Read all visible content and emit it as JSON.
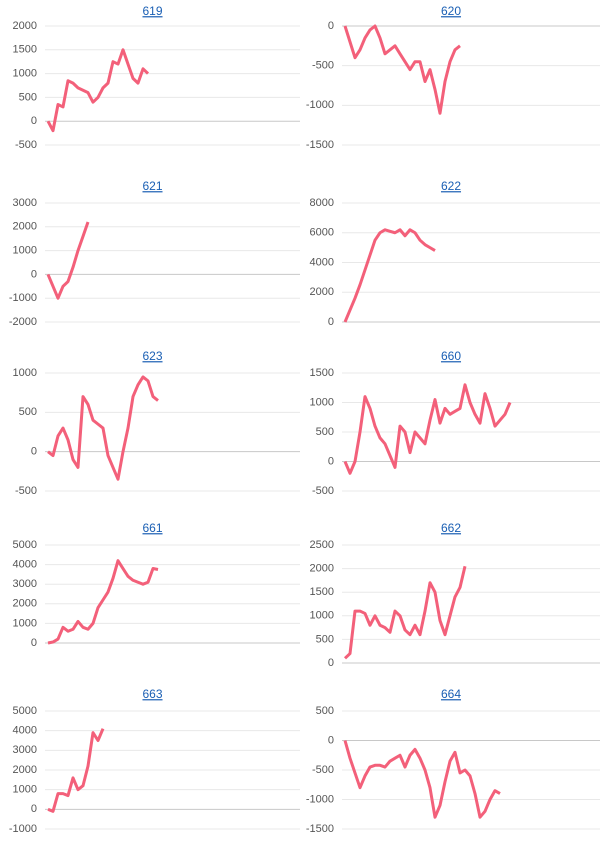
{
  "chart_data": [
    {
      "type": "line",
      "title": "619",
      "color": "#f3607a",
      "ylim": [
        -500,
        2000
      ],
      "yticks": [
        -500,
        0,
        500,
        1000,
        1500,
        2000
      ],
      "values": [
        0,
        -200,
        350,
        300,
        850,
        800,
        700,
        650,
        600,
        400,
        500,
        700,
        800,
        1250,
        1200,
        1500,
        1200,
        900,
        800,
        1100,
        1000
      ]
    },
    {
      "type": "line",
      "title": "620",
      "color": "#f3607a",
      "ylim": [
        -1500,
        0
      ],
      "yticks": [
        -1500,
        -1000,
        -500,
        0
      ],
      "values": [
        0,
        -200,
        -400,
        -300,
        -150,
        -50,
        0,
        -150,
        -350,
        -300,
        -250,
        -350,
        -450,
        -550,
        -450,
        -450,
        -700,
        -550,
        -800,
        -1100,
        -700,
        -450,
        -300,
        -250
      ]
    },
    {
      "type": "line",
      "title": "621",
      "color": "#f3607a",
      "ylim": [
        -2000,
        3000
      ],
      "yticks": [
        -2000,
        -1000,
        0,
        1000,
        2000,
        3000
      ],
      "values": [
        0,
        -500,
        -1000,
        -500,
        -300,
        300,
        1000,
        1600,
        2200
      ]
    },
    {
      "type": "line",
      "title": "622",
      "color": "#f3607a",
      "ylim": [
        0,
        8000
      ],
      "yticks": [
        0,
        2000,
        4000,
        6000,
        8000
      ],
      "values": [
        0,
        800,
        1600,
        2500,
        3500,
        4500,
        5500,
        6000,
        6200,
        6100,
        6000,
        6200,
        5800,
        6200,
        6000,
        5500,
        5200,
        5000,
        4800
      ]
    },
    {
      "type": "line",
      "title": "623",
      "color": "#f3607a",
      "ylim": [
        -500,
        1000
      ],
      "yticks": [
        -500,
        0,
        500,
        1000
      ],
      "values": [
        0,
        -50,
        200,
        300,
        150,
        -100,
        -200,
        700,
        600,
        400,
        350,
        300,
        -50,
        -200,
        -350,
        0,
        300,
        700,
        850,
        950,
        900,
        700,
        650
      ]
    },
    {
      "type": "line",
      "title": "660",
      "color": "#f3607a",
      "ylim": [
        -500,
        1500
      ],
      "yticks": [
        -500,
        0,
        500,
        1000,
        1500
      ],
      "values": [
        0,
        -200,
        0,
        500,
        1100,
        900,
        600,
        400,
        300,
        100,
        -100,
        600,
        500,
        150,
        500,
        400,
        300,
        700,
        1050,
        650,
        900,
        800,
        850,
        900,
        1300,
        1000,
        800,
        650,
        1150,
        900,
        600,
        700,
        800,
        1000
      ]
    },
    {
      "type": "line",
      "title": "661",
      "color": "#f3607a",
      "ylim": [
        0,
        5000
      ],
      "yticks": [
        0,
        1000,
        2000,
        3000,
        4000,
        5000
      ],
      "values": [
        0,
        50,
        200,
        800,
        600,
        700,
        1100,
        800,
        700,
        1000,
        1800,
        2200,
        2600,
        3300,
        4200,
        3800,
        3400,
        3200,
        3100,
        3000,
        3100,
        3800,
        3750
      ]
    },
    {
      "type": "line",
      "title": "662",
      "color": "#f3607a",
      "ylim": [
        0,
        2500
      ],
      "yticks": [
        0,
        500,
        1000,
        1500,
        2000,
        2500
      ],
      "values": [
        100,
        200,
        1100,
        1100,
        1050,
        800,
        1000,
        800,
        750,
        650,
        1100,
        1000,
        700,
        600,
        800,
        600,
        1100,
        1700,
        1500,
        900,
        600,
        1000,
        1400,
        1600,
        2050
      ]
    },
    {
      "type": "line",
      "title": "663",
      "color": "#f3607a",
      "ylim": [
        -1000,
        5000
      ],
      "yticks": [
        -1000,
        0,
        1000,
        2000,
        3000,
        4000,
        5000
      ],
      "values": [
        0,
        -100,
        800,
        800,
        700,
        1600,
        1000,
        1200,
        2200,
        3900,
        3500,
        4100
      ]
    },
    {
      "type": "line",
      "title": "664",
      "color": "#f3607a",
      "ylim": [
        -1500,
        500
      ],
      "yticks": [
        -1500,
        -1000,
        -500,
        0,
        500
      ],
      "values": [
        0,
        -300,
        -550,
        -800,
        -600,
        -450,
        -420,
        -420,
        -450,
        -350,
        -300,
        -250,
        -450,
        -250,
        -150,
        -300,
        -500,
        -800,
        -1300,
        -1100,
        -700,
        -350,
        -200,
        -550,
        -500,
        -600,
        -900,
        -1300,
        -1200,
        -1000,
        -850,
        -900
      ]
    }
  ]
}
